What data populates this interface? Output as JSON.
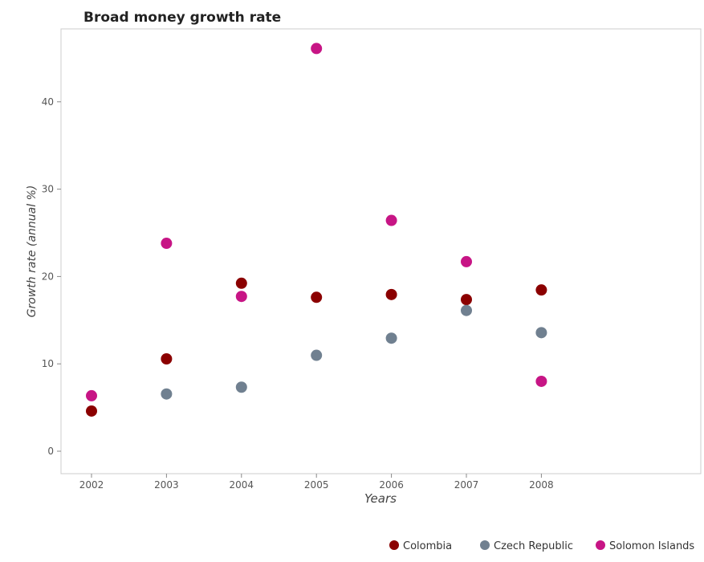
{
  "chart_data": {
    "type": "scatter",
    "title": "Broad money growth rate",
    "xlabel": "Years",
    "ylabel": "Growth rate (annual %)",
    "categories": [
      "2002",
      "2003",
      "2004",
      "2005",
      "2006",
      "2007",
      "2008"
    ],
    "ylim": [
      0,
      48.5
    ],
    "yticks": [
      0,
      10,
      20,
      30,
      40
    ],
    "grid": false,
    "legend_position": "bottom-right",
    "series": [
      {
        "name": "Colombia",
        "color": "#8b0000",
        "values": [
          4.6,
          10.57,
          19.23,
          17.62,
          17.94,
          17.36,
          18.46
        ]
      },
      {
        "name": "Czech Republic",
        "color": "#708090",
        "values": [
          null,
          6.55,
          7.33,
          10.98,
          12.94,
          16.11,
          13.57
        ]
      },
      {
        "name": "Solomon Islands",
        "color": "#c71585",
        "values": [
          6.35,
          23.8,
          17.72,
          46.1,
          26.42,
          21.7,
          8.0
        ]
      }
    ]
  }
}
